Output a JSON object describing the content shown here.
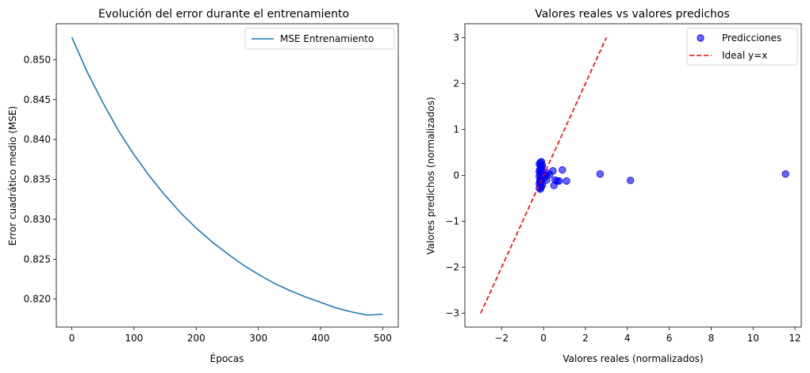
{
  "chart_data": [
    {
      "type": "line",
      "title": "Evolución del error durante el entrenamiento",
      "xlabel": "Épocas",
      "ylabel": "Error cuadrático medio (MSE)",
      "xlim": [
        -25,
        525
      ],
      "ylim": [
        0.8165,
        0.8545
      ],
      "xticks": [
        0,
        100,
        200,
        300,
        400,
        500
      ],
      "yticks": [
        0.82,
        0.825,
        0.83,
        0.835,
        0.84,
        0.845,
        0.85
      ],
      "legend": "top-right",
      "grid": false,
      "series": [
        {
          "name": "MSE Entrenamiento",
          "color": "#1f77b4",
          "x": [
            0,
            25,
            50,
            75,
            100,
            125,
            150,
            175,
            200,
            225,
            250,
            275,
            300,
            325,
            350,
            375,
            400,
            425,
            450,
            475,
            500
          ],
          "y": [
            0.8528,
            0.8484,
            0.8446,
            0.8411,
            0.8381,
            0.8354,
            0.833,
            0.8308,
            0.8289,
            0.8272,
            0.8257,
            0.8243,
            0.8231,
            0.822,
            0.8211,
            0.8203,
            0.8196,
            0.8189,
            0.8184,
            0.818,
            0.8181
          ]
        }
      ]
    },
    {
      "type": "scatter",
      "title": "Valores reales vs valores predichos",
      "xlabel": "Valores reales (normalizados)",
      "ylabel": "Valores predichos (normalizados)",
      "xlim": [
        -3.75,
        12.3
      ],
      "ylim": [
        -3.3,
        3.3
      ],
      "xticks": [
        -2,
        0,
        2,
        4,
        6,
        8,
        10,
        12
      ],
      "yticks": [
        -3,
        -2,
        -1,
        0,
        1,
        2,
        3
      ],
      "legend": "top-right",
      "grid": false,
      "series": [
        {
          "name": "Predicciones",
          "kind": "scatter",
          "color": "#0000ff",
          "points": [
            [
              -0.15,
              0.28
            ],
            [
              -0.1,
              0.3
            ],
            [
              -0.2,
              0.25
            ],
            [
              -0.05,
              0.22
            ],
            [
              -0.15,
              0.2
            ],
            [
              -0.12,
              0.15
            ],
            [
              -0.18,
              0.12
            ],
            [
              -0.08,
              0.1
            ],
            [
              -0.2,
              0.08
            ],
            [
              -0.1,
              0.05
            ],
            [
              -0.15,
              0.03
            ],
            [
              -0.05,
              0.0
            ],
            [
              -0.2,
              -0.02
            ],
            [
              -0.1,
              -0.05
            ],
            [
              -0.15,
              -0.08
            ],
            [
              -0.08,
              -0.1
            ],
            [
              -0.18,
              -0.12
            ],
            [
              -0.12,
              -0.15
            ],
            [
              -0.2,
              -0.18
            ],
            [
              -0.05,
              -0.2
            ],
            [
              -0.15,
              -0.22
            ],
            [
              -0.1,
              -0.25
            ],
            [
              -0.2,
              -0.28
            ],
            [
              -0.15,
              -0.3
            ],
            [
              -0.08,
              0.18
            ],
            [
              0.05,
              -0.05
            ],
            [
              0.1,
              0.0
            ],
            [
              0.15,
              -0.1
            ],
            [
              0.2,
              0.05
            ],
            [
              0.3,
              0.02
            ],
            [
              0.45,
              0.1
            ],
            [
              0.5,
              -0.22
            ],
            [
              0.55,
              -0.1
            ],
            [
              0.65,
              -0.12
            ],
            [
              0.75,
              -0.12
            ],
            [
              0.9,
              0.12
            ],
            [
              1.1,
              -0.12
            ],
            [
              2.7,
              0.03
            ],
            [
              4.15,
              -0.11
            ],
            [
              11.55,
              0.03
            ]
          ]
        },
        {
          "name": "Ideal y=x",
          "kind": "line",
          "dash": true,
          "color": "#ff0000",
          "x": [
            -3,
            3
          ],
          "y": [
            -3,
            3
          ]
        }
      ]
    }
  ]
}
